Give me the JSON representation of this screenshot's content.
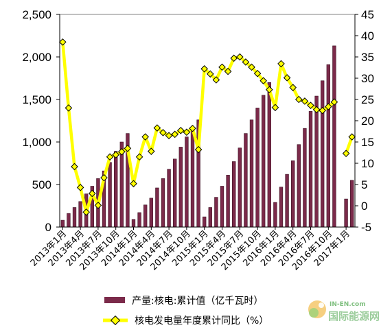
{
  "chart_data": {
    "type": "bar+line",
    "categories": [
      "2013年1月",
      "2013年2月",
      "2013年3月",
      "2013年4月",
      "2013年5月",
      "2013年6月",
      "2013年7月",
      "2013年8月",
      "2013年9月",
      "2013年10月",
      "2013年11月",
      "2013年12月",
      "2014年1月",
      "2014年2月",
      "2014年3月",
      "2014年4月",
      "2014年5月",
      "2014年6月",
      "2014年7月",
      "2014年8月",
      "2014年9月",
      "2014年10月",
      "2014年11月",
      "2014年12月",
      "2015年1月",
      "2015年2月",
      "2015年3月",
      "2015年4月",
      "2015年5月",
      "2015年6月",
      "2015年7月",
      "2015年8月",
      "2015年9月",
      "2015年10月",
      "2015年11月",
      "2015年12月",
      "2016年1月",
      "2016年2月",
      "2016年3月",
      "2016年4月",
      "2016年5月",
      "2016年6月",
      "2016年7月",
      "2016年8月",
      "2016年9月",
      "2016年10月",
      "2016年11月",
      "2016年12月",
      "2017年1月",
      "2017年2月"
    ],
    "x_tick_labels": [
      "2013年1月",
      "2013年4月",
      "2013年7月",
      "2013年10月",
      "2014年1月",
      "2014年4月",
      "2014年7月",
      "2014年10月",
      "2015年1月",
      "2015年4月",
      "2015年7月",
      "2015年10月",
      "2016年1月",
      "2016年4月",
      "2016年7月",
      "2016年10月",
      "2017年1月"
    ],
    "x_tick_indices": [
      0,
      3,
      6,
      9,
      12,
      15,
      18,
      21,
      24,
      27,
      30,
      33,
      36,
      39,
      42,
      45,
      48
    ],
    "series": [
      {
        "name": "产量:核电:累计值（亿千瓦时）",
        "type": "bar",
        "axis": "left",
        "color": "#7b2a4a",
        "values": [
          80,
          160,
          230,
          300,
          390,
          480,
          570,
          660,
          760,
          890,
          1000,
          1100,
          90,
          170,
          260,
          340,
          460,
          570,
          680,
          800,
          940,
          1060,
          1160,
          1260,
          120,
          230,
          350,
          480,
          610,
          770,
          930,
          1100,
          1260,
          1400,
          1550,
          1700,
          290,
          470,
          620,
          780,
          970,
          1160,
          1360,
          1540,
          1720,
          1910,
          2130,
          null,
          330,
          550
        ]
      },
      {
        "name": "核电发电量年度累计同比（%）",
        "type": "line",
        "axis": "right",
        "color": "#ffff00",
        "marker_color": "#ffff00",
        "marker_edge": "#000000",
        "values": [
          38.5,
          23,
          9.2,
          4.3,
          -1.5,
          2.9,
          0.1,
          6.6,
          11.5,
          12,
          12.7,
          13.5,
          5.2,
          11.5,
          16.2,
          12.8,
          18.3,
          17.2,
          16.5,
          16.8,
          17.7,
          17.3,
          18.2,
          13.2,
          32.2,
          31,
          29.6,
          32.6,
          31.6,
          34.7,
          35,
          33.8,
          32.6,
          31.1,
          29.4,
          27.3,
          23.1,
          33.4,
          30.1,
          27.8,
          25,
          24.6,
          23.6,
          22.6,
          22.4,
          23.3,
          24.4,
          null,
          12.3,
          16.2
        ]
      }
    ],
    "y_left": {
      "min": 0,
      "max": 2500,
      "ticks": [
        "0",
        "500",
        "1,000",
        "1,500",
        "2,000",
        "2,500"
      ]
    },
    "y_right": {
      "min": -5,
      "max": 45,
      "ticks": [
        "-5",
        "0",
        "5",
        "10",
        "15",
        "20",
        "25",
        "30",
        "35",
        "40",
        "45"
      ]
    },
    "title": "",
    "legend_position": "bottom",
    "grid": false
  },
  "watermark": {
    "domain_text": "IN-EN.com",
    "cn_text": "国际能源网"
  }
}
